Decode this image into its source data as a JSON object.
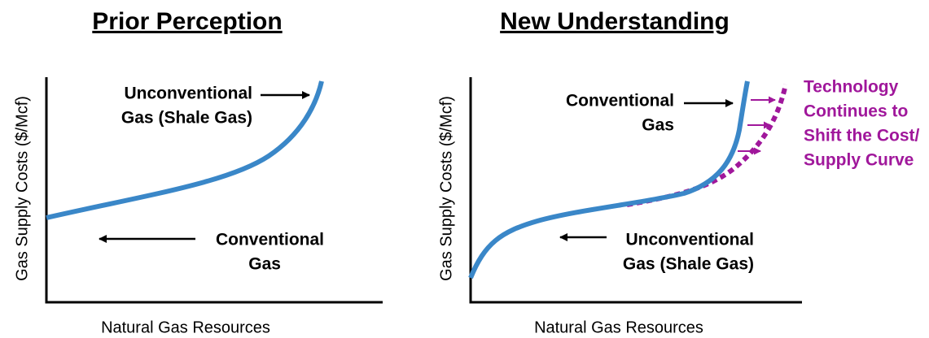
{
  "panels": [
    {
      "title": "Prior Perception",
      "y_axis_label": "Gas Supply Costs ($/Mcf)",
      "x_axis_label": "Natural Gas Resources",
      "upper_label": [
        "Unconventional",
        "Gas (Shale Gas)"
      ],
      "lower_label": [
        "Conventional",
        "Gas"
      ]
    },
    {
      "title": "New Understanding",
      "y_axis_label": "Gas Supply Costs ($/Mcf)",
      "x_axis_label": "Natural Gas Resources",
      "upper_label": [
        "Conventional",
        "Gas"
      ],
      "lower_label": [
        "Unconventional",
        "Gas (Shale Gas)"
      ],
      "shift_label": [
        "Technology",
        "Continues to",
        "Shift the Cost/",
        "Supply Curve"
      ]
    }
  ]
}
